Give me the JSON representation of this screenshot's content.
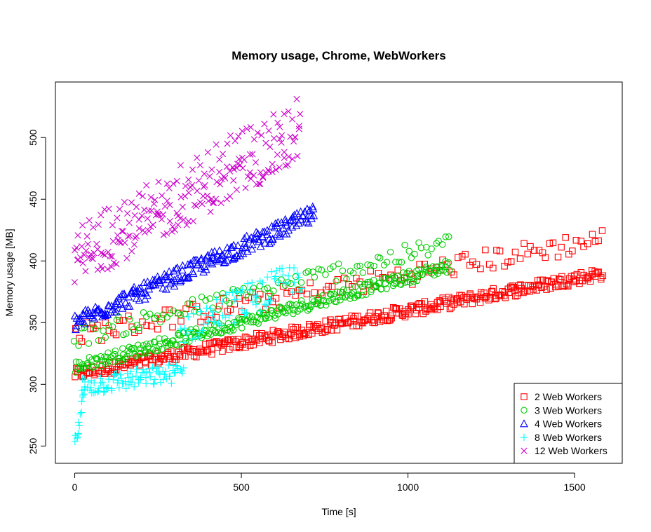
{
  "chart_data": {
    "type": "scatter",
    "title": "Memory usage, Chrome, WebWorkers",
    "xlabel": "Time [s]",
    "ylabel": "Memory usage [MB]",
    "xlim": [
      -58,
      1643
    ],
    "ylim": [
      236,
      545
    ],
    "xticks": [
      0,
      500,
      1000,
      1500
    ],
    "yticks": [
      250,
      300,
      350,
      400,
      450,
      500
    ],
    "grid": false,
    "legend_position": "bottom-right",
    "series": [
      {
        "name": "2 Web Workers",
        "marker": "square",
        "color": "#ff0000",
        "segments": [
          {
            "x0": 0,
            "x1": 1585,
            "y0": 308,
            "y1": 390,
            "spread": 5,
            "n": 420
          },
          {
            "x0": 0,
            "x1": 1585,
            "y0": 340,
            "y1": 418,
            "spread": 9,
            "n": 140
          }
        ]
      },
      {
        "name": "3 Web Workers",
        "marker": "circle",
        "color": "#00cd00",
        "segments": [
          {
            "x0": 0,
            "x1": 1125,
            "y0": 314,
            "y1": 396,
            "spread": 5,
            "n": 300
          },
          {
            "x0": 0,
            "x1": 1125,
            "y0": 338,
            "y1": 414,
            "spread": 8,
            "n": 110
          }
        ]
      },
      {
        "name": "4 Web Workers",
        "marker": "triangle",
        "color": "#0000ff",
        "segments": [
          {
            "x0": 0,
            "x1": 720,
            "y0": 350,
            "y1": 438,
            "spread": 7,
            "n": 240
          }
        ]
      },
      {
        "name": "8 Web Workers",
        "marker": "plus",
        "color": "#00ffff",
        "segments": [
          {
            "x0": 0,
            "x1": 25,
            "y0": 250,
            "y1": 292,
            "spread": 6,
            "n": 14
          },
          {
            "x0": 20,
            "x1": 325,
            "y0": 298,
            "y1": 310,
            "spread": 8,
            "n": 95
          },
          {
            "x0": 320,
            "x1": 680,
            "y0": 345,
            "y1": 388,
            "spread": 14,
            "n": 75
          }
        ]
      },
      {
        "name": "12 Web Workers",
        "marker": "x",
        "color": "#cc00cc",
        "segments": [
          {
            "x0": 0,
            "x1": 675,
            "y0": 395,
            "y1": 495,
            "spread": 16,
            "n": 170
          },
          {
            "x0": 0,
            "x1": 675,
            "y0": 418,
            "y1": 525,
            "spread": 10,
            "n": 60
          }
        ]
      }
    ]
  }
}
